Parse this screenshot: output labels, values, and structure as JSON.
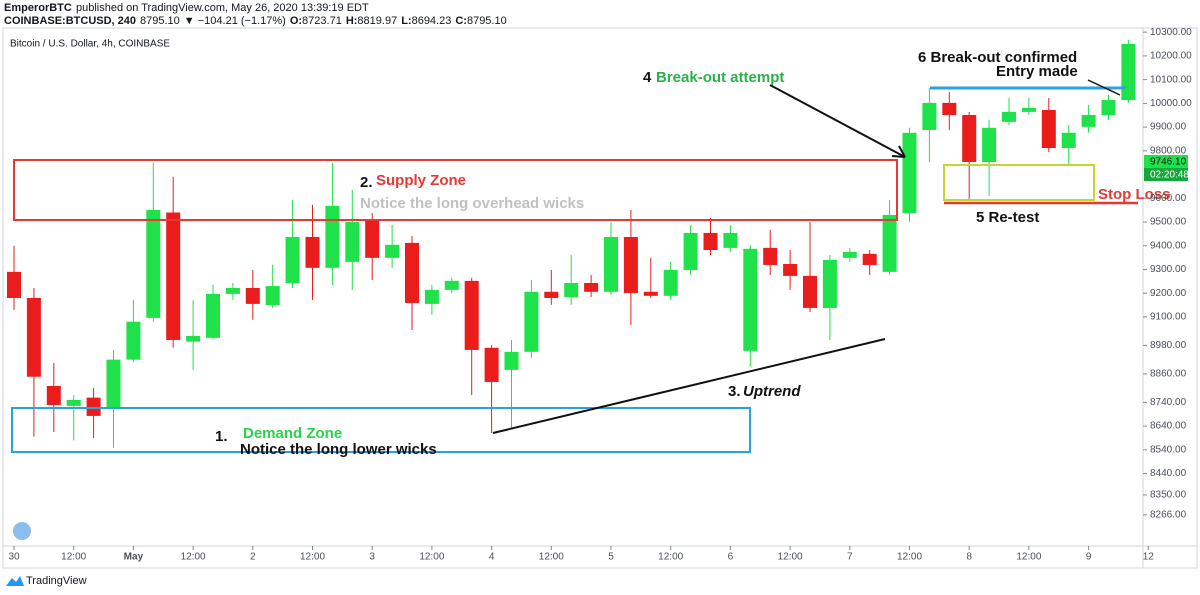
{
  "header": {
    "publisher": "EmperorBTC",
    "published": "published on TradingView.com, May 26, 2020 13:39:19 EDT",
    "symbol": "COINBASE:BTCUSD, 240",
    "last": "8795.10",
    "change": "▼ −104.21 (−1.17%)",
    "ohlc": [
      {
        "label": "O:",
        "value": "8723.71"
      },
      {
        "label": "H:",
        "value": "8819.97"
      },
      {
        "label": "L:",
        "value": "8694.23"
      },
      {
        "label": "C:",
        "value": "8795.10"
      }
    ]
  },
  "footer": "TradingView",
  "chart_data": {
    "type": "candlestick",
    "subtitle": "Bitcoin / U.S. Dollar, 4h, COINBASE",
    "categories": [
      "30",
      null,
      null,
      "12:00",
      null,
      null,
      "May",
      null,
      null,
      "12:00",
      null,
      null,
      "2",
      null,
      null,
      "12:00",
      null,
      null,
      "3",
      null,
      null,
      "12:00",
      null,
      null,
      "4",
      null,
      null,
      "12:00",
      null,
      null,
      "5",
      null,
      null,
      "12:00",
      null,
      null,
      "6",
      null,
      null,
      "12:00",
      null,
      null,
      "7",
      null,
      null,
      "12:00",
      null,
      null,
      "8",
      null,
      null,
      "12:00",
      null,
      null,
      "9",
      null,
      null,
      "12"
    ],
    "open": [
      9290,
      9180,
      8809,
      8725,
      8760,
      8715,
      8920,
      9096,
      9540,
      8996,
      9012,
      9197,
      9222,
      9150,
      9243,
      9437,
      9307,
      9332,
      9509,
      9349,
      9412,
      9155,
      9214,
      9252,
      8970,
      8877,
      8953,
      9206,
      9184,
      9243,
      9206,
      9437,
      9206,
      9189,
      9298,
      9454,
      9391,
      8957,
      9391,
      9323,
      9273,
      9138,
      9349,
      9366,
      9290,
      9538,
      9888,
      10002,
      9951,
      9753,
      9922,
      9964,
      9972,
      9812,
      9901,
      9951,
      10014,
      null
    ],
    "high": [
      9400,
      9222,
      8906,
      8770,
      8800,
      8960,
      9172,
      9750,
      9690,
      9170,
      9235,
      9243,
      9298,
      9320,
      9593,
      9572,
      9750,
      9635,
      9538,
      9488,
      9441,
      9235,
      9265,
      9265,
      8982,
      9003,
      9256,
      9298,
      9361,
      9277,
      9500,
      9551,
      9349,
      9332,
      9488,
      9517,
      9488,
      9404,
      9467,
      9382,
      9500,
      9361,
      9391,
      9382,
      9593,
      9897,
      10065,
      10048,
      9964,
      9930,
      10023,
      10023,
      10023,
      9909,
      9994,
      10035,
      10267,
      null
    ],
    "low": [
      9130,
      8595,
      8615,
      8580,
      8590,
      8550,
      8910,
      9080,
      8970,
      8877,
      9005,
      9172,
      9088,
      9138,
      9222,
      9172,
      9235,
      9214,
      9256,
      9307,
      9045,
      9109,
      9201,
      8771,
      8611,
      8632,
      8927,
      9151,
      9151,
      9184,
      9193,
      9066,
      9180,
      9172,
      9277,
      9361,
      9374,
      8890,
      9277,
      9214,
      9121,
      9003,
      9332,
      9277,
      9277,
      9500,
      9753,
      9888,
      9593,
      9610,
      9909,
      9951,
      9795,
      9741,
      9876,
      9930,
      10002,
      null
    ],
    "close": [
      9180,
      8848,
      8729,
      8750,
      8683,
      8920,
      9080,
      9551,
      9003,
      9020,
      9197,
      9222,
      9155,
      9230,
      9437,
      9307,
      9568,
      9500,
      9349,
      9404,
      9159,
      9214,
      9252,
      8961,
      8826,
      8953,
      9206,
      9180,
      9243,
      9206,
      9437,
      9201,
      9189,
      9298,
      9454,
      9382,
      9454,
      9387,
      9319,
      9273,
      9138,
      9340,
      9374,
      9319,
      9530,
      9876,
      10002,
      9951,
      9753,
      9897,
      9964,
      9981,
      9812,
      9876,
      9951,
      10014,
      10251,
      null
    ],
    "up_color": "#1fe24a",
    "down_color": "#ea1c1c",
    "ylim": [
      8139,
      10326
    ],
    "yticks": [
      {
        "value": 10300,
        "label": "10300.00"
      },
      {
        "value": 10200,
        "label": "10200.00"
      },
      {
        "value": 10100,
        "label": "10100.00"
      },
      {
        "value": 10000,
        "label": "10000.00"
      },
      {
        "value": 9900,
        "label": "9900.00"
      },
      {
        "value": 9800,
        "label": "9800.00"
      },
      {
        "value": 9600,
        "label": "9600.00"
      },
      {
        "value": 9500,
        "label": "9500.00"
      },
      {
        "value": 9400,
        "label": "9400.00"
      },
      {
        "value": 9300,
        "label": "9300.00"
      },
      {
        "value": 9200,
        "label": "9200.00"
      },
      {
        "value": 9100,
        "label": "9100.00"
      },
      {
        "value": 8980,
        "label": "8980.00"
      },
      {
        "value": 8860,
        "label": "8860.00"
      },
      {
        "value": 8740,
        "label": "8740.00"
      },
      {
        "value": 8640,
        "label": "8640.00"
      },
      {
        "value": 8540,
        "label": "8540.00"
      },
      {
        "value": 8440,
        "label": "8440.00"
      },
      {
        "value": 8350,
        "label": "8350.00"
      },
      {
        "value": 8266,
        "label": "8266.00"
      }
    ],
    "price_label": "9746.10",
    "countdown": "02:20:48",
    "annotations": {
      "supply_num": "2.",
      "supply": "Supply Zone",
      "supply_note": "Notice the long overhead wicks",
      "demand_num": "1.",
      "demand": "Demand Zone",
      "demand_note": "Notice the long lower wicks",
      "uptrend_num": "3.",
      "uptrend": "Uptrend",
      "breakout_num": "4",
      "breakout": "Break-out attempt",
      "confirmed": "6 Break-out confirmed",
      "entry": "Entry made",
      "retest": "5 Re-test",
      "stop": "Stop Loss"
    }
  }
}
